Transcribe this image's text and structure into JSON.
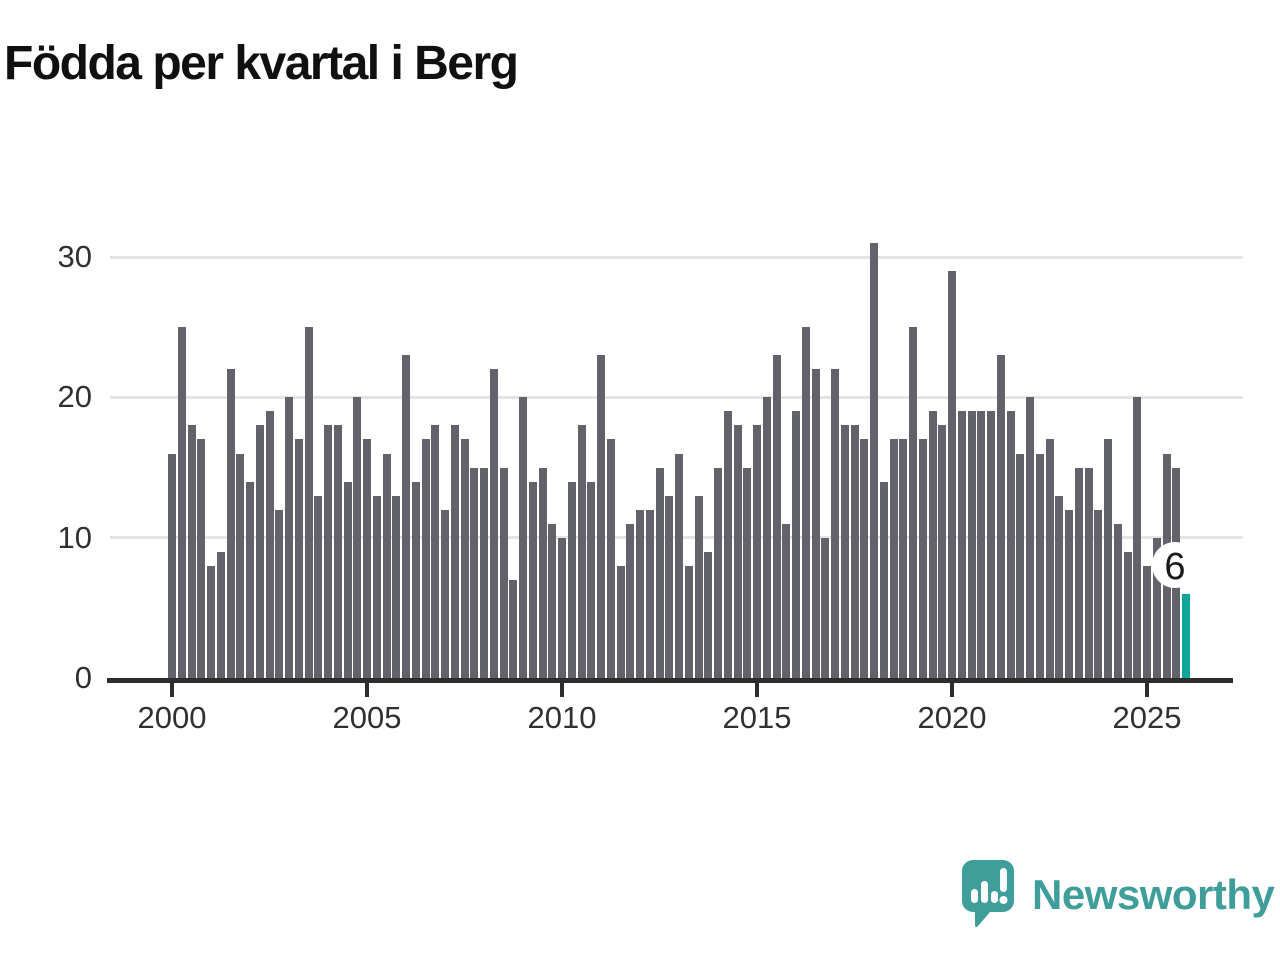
{
  "chart_data": {
    "type": "bar",
    "title": "Födda per kvartal i Berg",
    "x_start": "2000 Q1",
    "x_end": "2026 Q1",
    "values": [
      16,
      25,
      18,
      17,
      8,
      9,
      22,
      16,
      14,
      18,
      19,
      12,
      20,
      17,
      25,
      13,
      18,
      18,
      14,
      20,
      17,
      13,
      16,
      13,
      23,
      14,
      17,
      18,
      12,
      18,
      17,
      15,
      15,
      22,
      15,
      7,
      20,
      14,
      15,
      11,
      10,
      14,
      18,
      14,
      23,
      17,
      8,
      11,
      12,
      12,
      15,
      13,
      16,
      8,
      13,
      9,
      15,
      19,
      18,
      15,
      18,
      20,
      23,
      11,
      19,
      25,
      22,
      10,
      22,
      18,
      18,
      17,
      31,
      14,
      17,
      17,
      25,
      17,
      19,
      18,
      29,
      19,
      19,
      19,
      19,
      23,
      19,
      16,
      20,
      16,
      17,
      13,
      12,
      15,
      15,
      12,
      17,
      11,
      9,
      20,
      8,
      10,
      16,
      15,
      6
    ],
    "x_tick_labels": [
      "2000",
      "2005",
      "2010",
      "2015",
      "2020",
      "2025"
    ],
    "x_ticks_every_n_bars": 20,
    "y_ticks": [
      0,
      10,
      20,
      30
    ],
    "y_tick_labels": [
      "0",
      "10",
      "20",
      "30"
    ],
    "ylim": [
      0,
      32
    ],
    "grid": "horizontal",
    "legend": "none",
    "bar_color": "#62626b",
    "highlight": {
      "index": 104,
      "value": 6,
      "label": "6",
      "color": "#0da59b"
    }
  },
  "footer": {
    "logo_text": "Newsworthy",
    "logo_color": "#3f9e99"
  }
}
